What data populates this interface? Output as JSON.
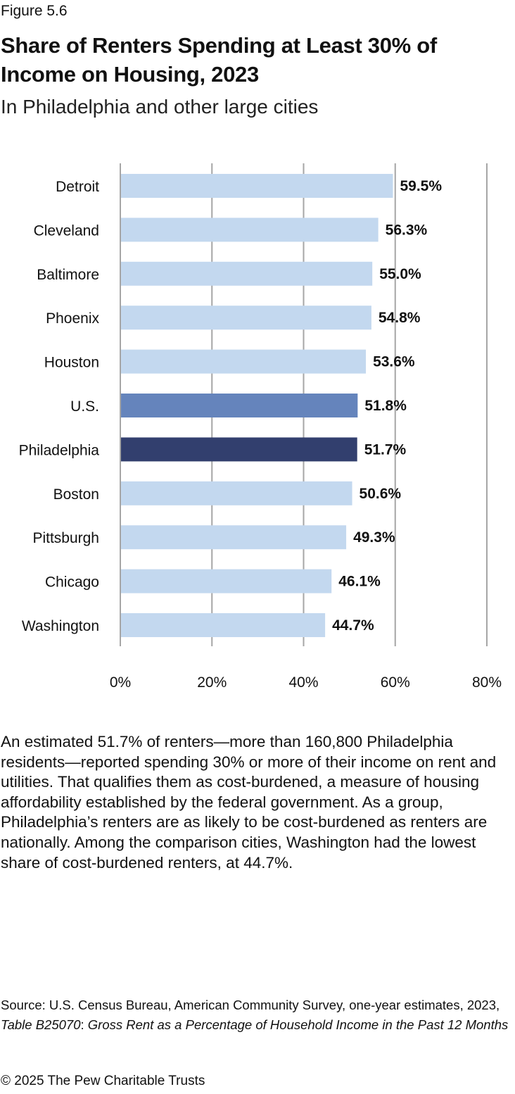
{
  "figure_label": "Figure 5.6",
  "title": "Share of Renters Spending at Least 30% of Income on Housing, 2023",
  "subtitle": "In Philadelphia and other large cities",
  "chart_data": {
    "type": "bar",
    "orientation": "horizontal",
    "title": "Share of Renters Spending at Least 30% of Income on Housing, 2023",
    "categories": [
      "Detroit",
      "Cleveland",
      "Baltimore",
      "Phoenix",
      "Houston",
      "U.S.",
      "Philadelphia",
      "Boston",
      "Pittsburgh",
      "Chicago",
      "Washington"
    ],
    "values": [
      59.5,
      56.3,
      55.0,
      54.8,
      53.6,
      51.8,
      51.7,
      50.6,
      49.3,
      46.1,
      44.7
    ],
    "value_labels": [
      "59.5%",
      "56.3%",
      "55.0%",
      "54.8%",
      "53.6%",
      "51.8%",
      "51.7%",
      "50.6%",
      "49.3%",
      "46.1%",
      "44.7%"
    ],
    "colors": [
      "#c3d8ef",
      "#c3d8ef",
      "#c3d8ef",
      "#c3d8ef",
      "#c3d8ef",
      "#6584bc",
      "#323f6e",
      "#c3d8ef",
      "#c3d8ef",
      "#c3d8ef",
      "#c3d8ef"
    ],
    "xlim": [
      0,
      80
    ],
    "xticks": [
      0,
      20,
      40,
      60,
      80
    ],
    "xtick_labels": [
      "0%",
      "20%",
      "40%",
      "60%",
      "80%"
    ],
    "grid": true,
    "xlabel": "",
    "ylabel": ""
  },
  "paragraph": "An estimated 51.7% of renters—more than 160,800 Philadelphia residents—reported spending 30% or more of their income on rent and utilities. That qualifies them as cost-burdened, a measure of housing affordability established by the federal government. As a group, Philadelphia’s renters are as likely to be cost-burdened as renters are nationally. Among the comparison cities, Washington had the lowest share of cost-burdened renters, at 44.7%.",
  "source": {
    "prefix": "Source: U.S. Census Bureau, American Community Survey, one-year estimates, 2023, ",
    "table": "Table B25070",
    "sep": ": ",
    "table_title": "Gross Rent as a Percentage of Household Income in the Past 12 Months"
  },
  "copyright": "© 2025 The Pew Charitable Trusts"
}
